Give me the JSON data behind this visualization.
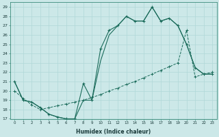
{
  "xlabel": "Humidex (Indice chaleur)",
  "bg_color": "#cce8e8",
  "grid_color": "#b0d8d8",
  "line_color": "#1a6b5a",
  "xmin": -0.5,
  "xmax": 23.5,
  "ymin": 17,
  "ymax": 29.5,
  "line1_x": [
    0,
    1,
    2,
    3,
    4,
    5,
    6,
    7,
    8,
    9,
    10,
    11,
    12,
    13,
    14,
    15,
    16,
    17,
    18,
    19,
    20,
    21,
    22,
    23
  ],
  "line1_y": [
    21,
    19,
    18.8,
    18.2,
    17.5,
    17.2,
    17.0,
    17.0,
    20.8,
    19.0,
    24.5,
    26.5,
    27.0,
    28.0,
    27.5,
    27.5,
    29.0,
    27.5,
    27.8,
    27.0,
    25.0,
    22.5,
    21.8,
    21.8
  ],
  "line2_x": [
    0,
    1,
    2,
    3,
    4,
    5,
    6,
    7,
    8,
    9,
    10,
    11,
    12,
    13,
    14,
    15,
    16,
    17,
    18,
    19,
    20,
    21,
    22,
    23
  ],
  "line2_y": [
    21,
    19,
    18.8,
    18.2,
    17.5,
    17.2,
    17.0,
    17.0,
    19.0,
    19.0,
    23.2,
    26.0,
    27.0,
    28.0,
    27.5,
    27.5,
    29.0,
    27.5,
    27.8,
    27.0,
    25.0,
    22.5,
    21.8,
    21.8
  ],
  "line3_x": [
    0,
    1,
    2,
    3,
    4,
    5,
    6,
    7,
    8,
    9,
    10,
    11,
    12,
    13,
    14,
    15,
    16,
    17,
    18,
    19,
    20,
    21,
    22,
    23
  ],
  "line3_y": [
    20.0,
    19.2,
    18.5,
    18.0,
    18.2,
    18.4,
    18.6,
    18.8,
    19.0,
    19.3,
    19.6,
    20.0,
    20.3,
    20.7,
    21.0,
    21.4,
    21.8,
    22.2,
    22.6,
    23.0,
    26.5,
    21.5,
    21.8,
    22.0
  ]
}
